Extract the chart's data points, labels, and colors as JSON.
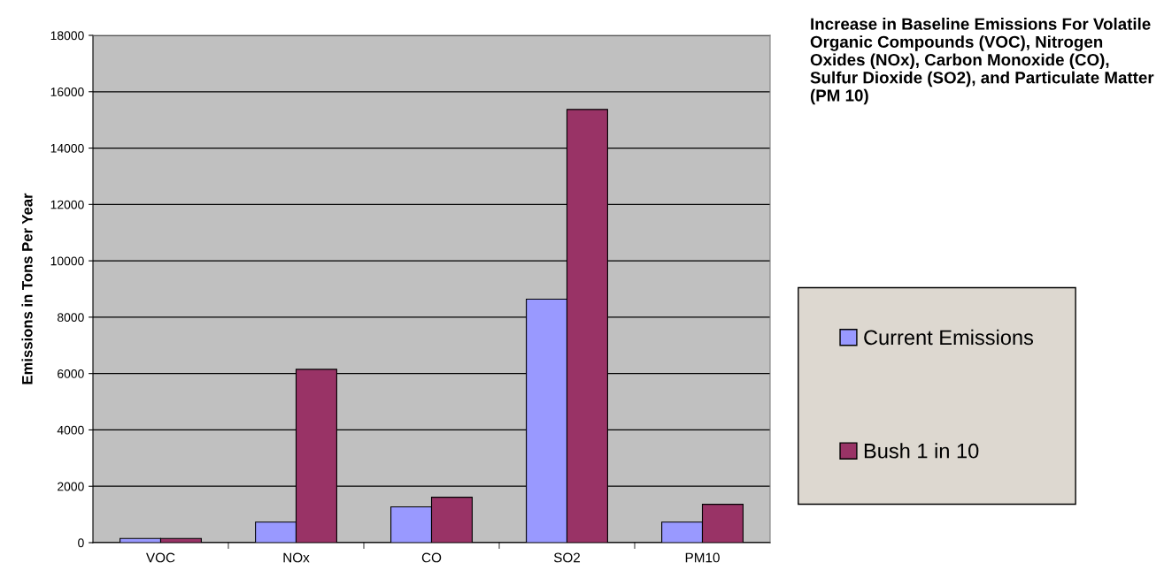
{
  "chart_data": {
    "type": "bar",
    "title": "Increase in Baseline Emissions For Volatile Organic Compounds (VOC), Nitrogen Oxides (NOx), Carbon Monoxide (CO), Sulfur Dioxide (SO2), and Particulate Matter (PM 10)",
    "ylabel": "Emissions in Tons Per Year",
    "categories": [
      "VOC",
      "NOx",
      "CO",
      "SO2",
      "PM10"
    ],
    "series": [
      {
        "name": "Current Emissions",
        "color": "#9999ff",
        "values": [
          150,
          730,
          1270,
          8640,
          730
        ]
      },
      {
        "name": "Bush 1 in 10",
        "color": "#993366",
        "values": [
          150,
          6150,
          1610,
          15370,
          1360
        ]
      }
    ],
    "ylim": [
      0,
      18000
    ],
    "yticks": [
      0,
      2000,
      4000,
      6000,
      8000,
      10000,
      12000,
      14000,
      16000,
      18000
    ],
    "grid": "y",
    "legend": "right"
  }
}
